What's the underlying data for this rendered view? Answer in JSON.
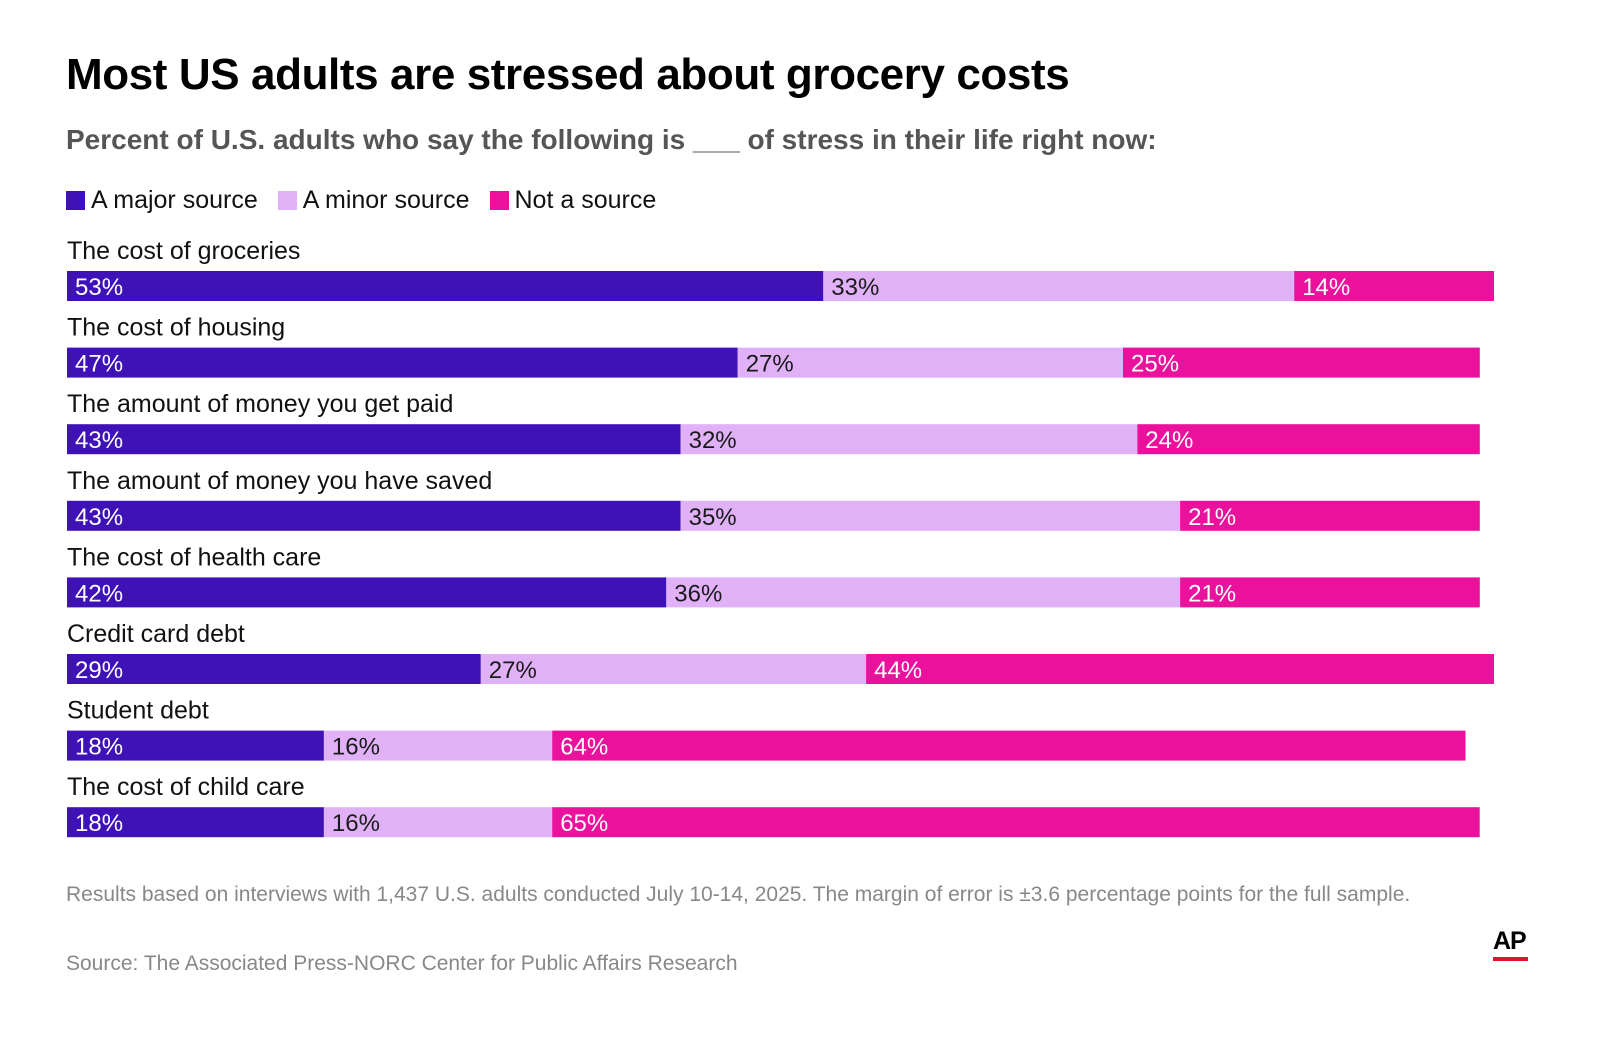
{
  "title": "Most US adults are stressed about grocery costs",
  "subtitle": "Percent of U.S. adults who say the following is ___ of stress in their life right now:",
  "footnote": "Results based on interviews with 1,437 U.S. adults conducted July 10-14, 2025. The margin of error is ±3.6 percentage points for the full sample.",
  "source": "Source: The Associated Press-NORC Center for Public Affairs Research",
  "logo": {
    "text": "AP",
    "bar_color": "#e8112d"
  },
  "colors": {
    "major": "#3f12b7",
    "minor": "#e0b1f7",
    "not": "#ea119d",
    "label_on_dark": "#ffffff",
    "label_on_light": "#1a1a1a"
  },
  "chart_data": {
    "type": "bar",
    "orientation": "horizontal",
    "stacked": true,
    "unit": "%",
    "xlim": [
      0,
      100
    ],
    "grid": false,
    "legend_placement": "top-left",
    "categories": [
      "The cost of groceries",
      "The cost of housing",
      "The amount of money you get paid",
      "The amount of money you have saved",
      "The cost of health care",
      "Credit card debt",
      "Student debt",
      "The cost of child care"
    ],
    "series": [
      {
        "name": "A major source",
        "color": "#3f12b7",
        "values": [
          53,
          47,
          43,
          43,
          42,
          29,
          18,
          18
        ],
        "labels": [
          "53%",
          "47%",
          "43%",
          "43%",
          "42%",
          "29%",
          "18%",
          "18%"
        ]
      },
      {
        "name": "A minor source",
        "color": "#e0b1f7",
        "values": [
          33,
          27,
          32,
          35,
          36,
          27,
          16,
          16
        ],
        "labels": [
          "33%",
          "27%",
          "32%",
          "35%",
          "36%",
          "27%",
          "16%",
          "16%"
        ]
      },
      {
        "name": "Not a source",
        "color": "#ea119d",
        "values": [
          14,
          25,
          24,
          21,
          21,
          44,
          64,
          65
        ],
        "labels": [
          "14%",
          "25%",
          "24%",
          "21%",
          "21%",
          "44%",
          "64%",
          "65%"
        ]
      }
    ]
  }
}
